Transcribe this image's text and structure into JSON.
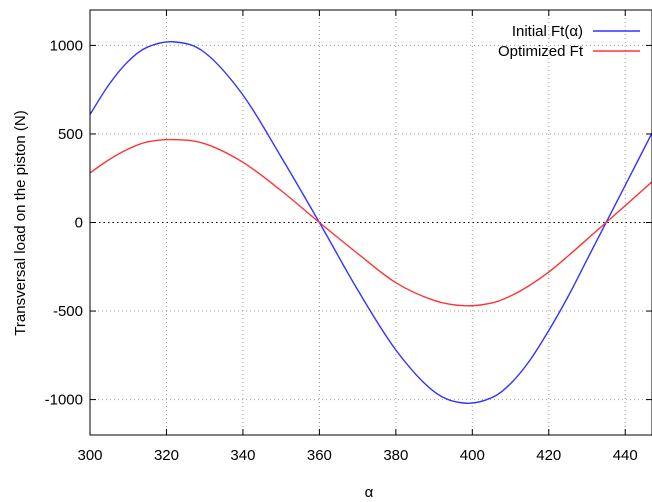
{
  "chart_data": {
    "type": "line",
    "title": "",
    "xlabel": "α",
    "ylabel": "Transversal load on the piston (N)",
    "xlim": [
      300,
      447
    ],
    "ylim": [
      -1200,
      1200
    ],
    "xticks": [
      300,
      320,
      340,
      360,
      380,
      400,
      420,
      440
    ],
    "yticks": [
      -1000,
      -500,
      0,
      500,
      1000
    ],
    "legend_position": "top-right",
    "grid": "dotted",
    "zero_line": true,
    "colors": {
      "axis": "#000000",
      "grid": "#a0a0a0"
    },
    "series": [
      {
        "name": "Initial Ft(α)",
        "color": "#3333ff",
        "x": [
          300,
          305,
          310,
          315,
          322,
          330,
          340,
          350,
          360,
          370,
          380,
          390,
          398,
          405,
          410,
          415,
          420,
          425,
          430,
          435,
          440,
          447
        ],
        "values": [
          610,
          780,
          910,
          990,
          1020,
          960,
          720,
          370,
          0,
          -380,
          -720,
          -955,
          -1020,
          -990,
          -910,
          -780,
          -610,
          -420,
          -210,
          0,
          210,
          505
        ]
      },
      {
        "name": "Optimized Ft",
        "color": "#ff3333",
        "x": [
          300,
          305,
          310,
          315,
          322,
          330,
          340,
          350,
          360,
          370,
          380,
          390,
          398,
          405,
          410,
          415,
          420,
          425,
          430,
          435,
          440,
          447
        ],
        "values": [
          280,
          355,
          415,
          455,
          468,
          445,
          340,
          180,
          0,
          -175,
          -340,
          -440,
          -470,
          -455,
          -415,
          -355,
          -280,
          -190,
          -95,
          0,
          95,
          230
        ]
      }
    ]
  }
}
